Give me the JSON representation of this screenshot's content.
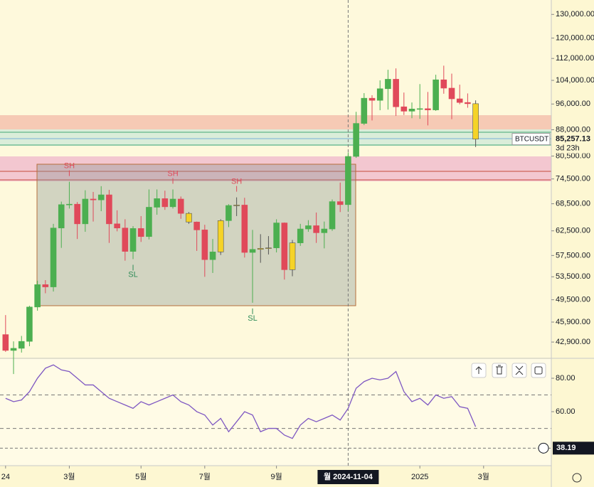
{
  "chart_data": [
    {
      "type": "candlestick",
      "log": true,
      "open": [
        44000,
        41700,
        42000,
        43000,
        48300,
        52100,
        51700,
        63100,
        68300,
        68400,
        64000,
        69600,
        69400,
        70600,
        64000,
        63100,
        58300,
        63000,
        61300,
        67700,
        69700,
        67800,
        69600,
        66300,
        64400,
        62700,
        56700,
        58200,
        64700,
        68100,
        68200,
        58100,
        58700,
        58900,
        59000,
        64200,
        54800,
        60000,
        62900,
        63600,
        62100,
        62900,
        69000,
        68300,
        80400,
        89900,
        97900,
        97200,
        101100,
        104400,
        95100,
        93700,
        94400,
        94500,
        94100,
        104200,
        101300,
        97700,
        96500,
        96100
      ],
      "high": [
        47000,
        43000,
        43800,
        48500,
        52800,
        52900,
        64000,
        69000,
        73800,
        68900,
        71700,
        71300,
        72700,
        71800,
        67000,
        65000,
        63500,
        65700,
        71900,
        71900,
        71600,
        71900,
        70200,
        66600,
        64500,
        63800,
        60800,
        65000,
        68400,
        70000,
        69900,
        62700,
        61800,
        61400,
        65000,
        64300,
        60600,
        64000,
        64800,
        66500,
        64500,
        69500,
        73600,
        81500,
        93500,
        99600,
        98900,
        104000,
        107800,
        108300,
        99800,
        96500,
        102700,
        100000,
        106000,
        109300,
        106400,
        102500,
        99500,
        97200
      ],
      "low": [
        41500,
        38500,
        41400,
        42300,
        47700,
        50600,
        50900,
        59000,
        67400,
        60800,
        62300,
        64500,
        66800,
        60000,
        62400,
        56500,
        56800,
        60200,
        60700,
        66000,
        67100,
        67400,
        65100,
        64000,
        58400,
        53500,
        54200,
        57600,
        63300,
        65700,
        57100,
        49000,
        56100,
        57700,
        58100,
        53000,
        53600,
        59400,
        62300,
        60000,
        58900,
        62500,
        66600,
        66800,
        80000,
        89400,
        90800,
        94000,
        94200,
        92200,
        92500,
        91500,
        91300,
        89300,
        93800,
        99400,
        91200,
        95900,
        94800,
        83000
      ],
      "close": [
        41700,
        42000,
        43000,
        48300,
        52100,
        51700,
        63100,
        68300,
        68400,
        64000,
        69600,
        69400,
        70600,
        64000,
        63100,
        58300,
        63000,
        61300,
        67700,
        69700,
        67800,
        69600,
        66300,
        64400,
        62700,
        56700,
        58200,
        64700,
        68100,
        68200,
        58100,
        58700,
        58900,
        59000,
        64200,
        54800,
        60000,
        62900,
        63600,
        62100,
        62900,
        69000,
        68300,
        80400,
        89900,
        97900,
        97200,
        101100,
        104400,
        95100,
        93700,
        94400,
        94500,
        94100,
        104200,
        101300,
        97700,
        96500,
        96100,
        85257.13
      ],
      "up_color": "#4caf50",
      "down_color": "#e0495a",
      "highlight_color": "#f5d327",
      "highlighted": [
        23,
        27,
        29,
        32,
        33,
        36,
        59
      ],
      "xlim": [
        -0.7,
        68.5
      ],
      "xticks": [
        {
          "value": 0,
          "label": "24"
        },
        {
          "value": 8,
          "label": "3월"
        },
        {
          "value": 17,
          "label": "5월"
        },
        {
          "value": 25,
          "label": "7월"
        },
        {
          "value": 34,
          "label": "9월"
        },
        {
          "value": 52,
          "label": "2025"
        },
        {
          "value": 60,
          "label": "3월"
        }
      ],
      "ylim": [
        40700,
        136500
      ],
      "yticks": [
        {
          "value": 130000,
          "label": "130,000.00"
        },
        {
          "value": 120000,
          "label": "120,000.00"
        },
        {
          "value": 112000,
          "label": "112,000.00"
        },
        {
          "value": 104000,
          "label": "104,000.00"
        },
        {
          "value": 96000,
          "label": "96,000.00"
        },
        {
          "value": 88000,
          "label": "88,000.00"
        },
        {
          "value": 80500,
          "label": "80,500.00"
        },
        {
          "value": 74500,
          "label": "74,500.00"
        },
        {
          "value": 68500,
          "label": "68,500.00"
        },
        {
          "value": 62500,
          "label": "62,500.00"
        },
        {
          "value": 57500,
          "label": "57,500.00"
        },
        {
          "value": 53500,
          "label": "53,500.00"
        },
        {
          "value": 49500,
          "label": "49,500.00"
        },
        {
          "value": 45900,
          "label": "45,900.00"
        },
        {
          "value": 42900,
          "label": "42,900.00"
        }
      ],
      "annotations": [
        {
          "text": "SH",
          "index": 8,
          "side": "high"
        },
        {
          "text": "SH",
          "index": 21,
          "side": "high"
        },
        {
          "text": "SH",
          "index": 29,
          "side": "high"
        },
        {
          "text": "SL",
          "index": 16,
          "side": "low"
        },
        {
          "text": "SL",
          "index": 31,
          "side": "low"
        }
      ],
      "crosshair": {
        "index": 43,
        "label": "월 2024-11-04"
      },
      "last_price": {
        "symbol": "BTCUSDT",
        "value": 85257.13,
        "label": "85,257.13",
        "countdown": "3d 23h"
      }
    },
    {
      "type": "line",
      "color": "#7e57c2",
      "values": [
        68,
        66,
        67,
        72,
        80,
        86,
        88,
        85,
        84,
        80,
        76,
        76,
        72,
        68,
        66,
        64,
        62,
        66,
        64,
        66,
        68,
        70,
        66,
        64,
        60,
        58,
        52,
        56,
        48,
        54,
        60,
        58,
        48,
        50,
        50,
        46,
        44,
        52,
        56,
        54,
        56,
        58,
        55,
        62,
        74,
        78,
        80,
        79,
        80,
        84,
        72,
        66,
        68,
        64,
        70,
        68,
        69,
        63,
        62,
        51
      ],
      "ylim": [
        27.7,
        91.5
      ],
      "yticks": [
        {
          "value": 80,
          "label": "80.00"
        },
        {
          "value": 60,
          "label": "60.00"
        }
      ],
      "levels": [
        70,
        50
      ],
      "crosshair": {
        "value": 38.19,
        "label": "38.19"
      }
    }
  ]
}
